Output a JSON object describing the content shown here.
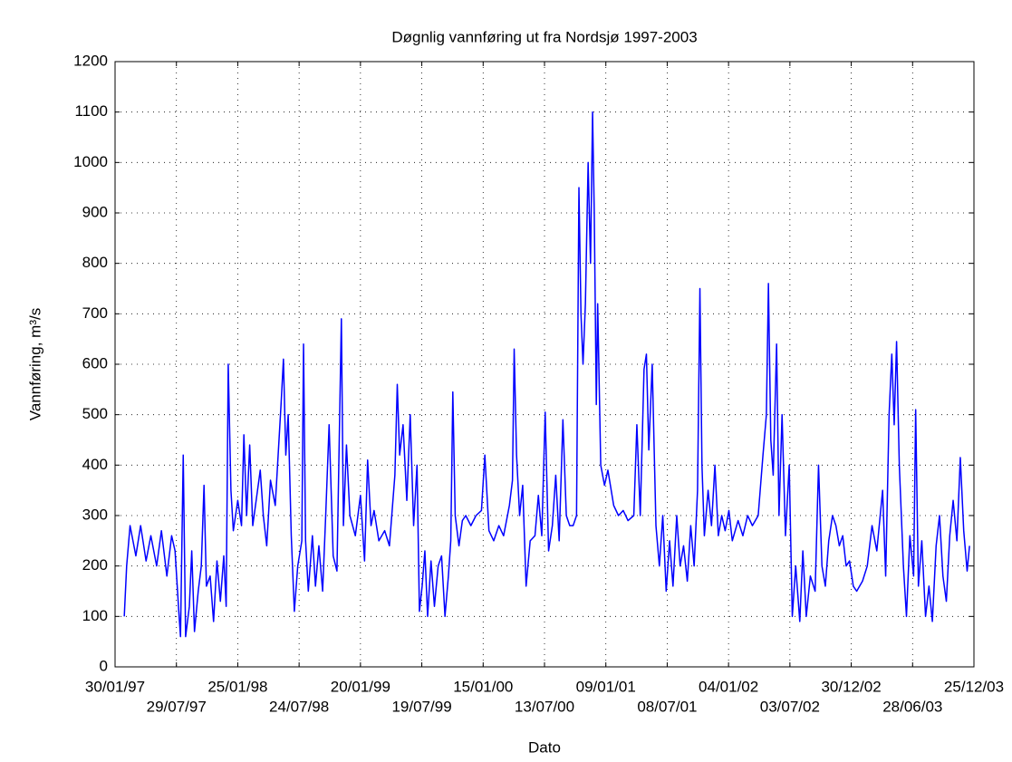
{
  "chart_data": {
    "type": "line",
    "title": "Døgnlig vannføring ut fra Nordsjø 1997-2003",
    "xlabel": "Dato",
    "ylabel": "Vannføring, m³/s",
    "color": "#0000ff",
    "grid": true,
    "ylim": [
      0,
      1200
    ],
    "yticks": [
      0,
      100,
      200,
      300,
      400,
      500,
      600,
      700,
      800,
      900,
      1000,
      1100,
      1200
    ],
    "xlim": [
      "30/01/97",
      "25/12/03"
    ],
    "xticks": [
      "30/01/97",
      "29/07/97",
      "25/01/98",
      "24/07/98",
      "20/01/99",
      "19/07/99",
      "15/01/00",
      "13/07/00",
      "09/01/01",
      "08/07/01",
      "04/01/02",
      "03/07/02",
      "30/12/02",
      "28/06/03",
      "25/12/03"
    ],
    "x": [
      "26/02/97",
      "05/03/97",
      "15/03/97",
      "01/04/97",
      "15/04/97",
      "01/05/97",
      "15/05/97",
      "01/06/97",
      "15/06/97",
      "01/07/97",
      "15/07/97",
      "25/07/97",
      "05/08/97",
      "10/08/97",
      "18/08/97",
      "25/08/97",
      "05/09/97",
      "12/09/97",
      "20/09/97",
      "01/10/97",
      "10/10/97",
      "18/10/97",
      "25/10/97",
      "05/11/97",
      "15/11/97",
      "25/11/97",
      "05/12/97",
      "15/12/97",
      "22/12/97",
      "28/12/97",
      "05/01/98",
      "12/01/98",
      "25/01/98",
      "05/02/98",
      "12/02/98",
      "20/02/98",
      "01/03/98",
      "10/03/98",
      "20/03/98",
      "01/04/98",
      "10/04/98",
      "20/04/98",
      "01/05/98",
      "15/05/98",
      "01/06/98",
      "08/06/98",
      "15/06/98",
      "22/06/98",
      "01/07/98",
      "10/07/98",
      "20/07/98",
      "01/08/98",
      "06/08/98",
      "12/08/98",
      "20/08/98",
      "01/09/98",
      "10/09/98",
      "20/09/98",
      "01/10/98",
      "10/10/98",
      "20/10/98",
      "01/11/98",
      "12/11/98",
      "25/11/98",
      "01/12/98",
      "10/12/98",
      "20/12/98",
      "05/01/99",
      "20/01/99",
      "01/02/99",
      "10/02/99",
      "20/02/99",
      "01/03/99",
      "15/03/99",
      "01/04/99",
      "15/04/99",
      "01/05/99",
      "08/05/99",
      "15/05/99",
      "25/05/99",
      "05/06/99",
      "15/06/99",
      "25/06/99",
      "05/07/99",
      "12/07/99",
      "20/07/99",
      "28/07/99",
      "05/08/99",
      "15/08/99",
      "25/08/99",
      "05/09/99",
      "15/09/99",
      "25/09/99",
      "05/10/99",
      "12/10/99",
      "18/10/99",
      "25/10/99",
      "05/11/99",
      "15/11/99",
      "25/11/99",
      "10/12/99",
      "25/12/99",
      "10/01/00",
      "20/01/00",
      "01/02/00",
      "15/02/00",
      "01/03/00",
      "15/03/00",
      "01/04/00",
      "10/04/00",
      "15/04/00",
      "22/04/00",
      "01/05/00",
      "10/05/00",
      "20/05/00",
      "01/06/00",
      "15/06/00",
      "25/06/00",
      "05/07/00",
      "15/07/00",
      "25/07/00",
      "05/08/00",
      "15/08/00",
      "25/08/00",
      "05/09/00",
      "15/09/00",
      "25/09/00",
      "05/10/00",
      "15/10/00",
      "22/10/00",
      "28/10/00",
      "03/11/00",
      "10/11/00",
      "18/11/00",
      "25/11/00",
      "01/12/00",
      "06/12/00",
      "12/12/00",
      "16/12/00",
      "25/12/00",
      "05/01/01",
      "15/01/01",
      "01/02/01",
      "15/02/01",
      "01/03/01",
      "15/03/01",
      "01/04/01",
      "10/04/01",
      "20/04/01",
      "01/05/01",
      "08/05/01",
      "15/05/01",
      "25/05/01",
      "05/06/01",
      "15/06/01",
      "25/06/01",
      "05/07/01",
      "15/07/01",
      "25/07/01",
      "05/08/01",
      "15/08/01",
      "25/08/01",
      "05/09/01",
      "15/09/01",
      "25/09/01",
      "05/10/01",
      "12/10/01",
      "18/10/01",
      "25/10/01",
      "05/11/01",
      "15/11/01",
      "25/11/01",
      "05/12/01",
      "15/12/01",
      "25/12/01",
      "05/01/02",
      "15/01/02",
      "01/02/02",
      "15/02/02",
      "01/03/02",
      "15/03/02",
      "01/04/02",
      "15/04/02",
      "25/04/02",
      "01/05/02",
      "08/05/02",
      "15/05/02",
      "25/05/02",
      "01/06/02",
      "10/06/02",
      "20/06/02",
      "01/07/02",
      "10/07/02",
      "20/07/02",
      "01/08/02",
      "10/08/02",
      "20/08/02",
      "01/09/02",
      "15/09/02",
      "25/09/02",
      "05/10/02",
      "15/10/02",
      "25/10/02",
      "05/11/02",
      "15/11/02",
      "25/11/02",
      "05/12/02",
      "15/12/02",
      "25/12/02",
      "05/01/03",
      "15/01/03",
      "01/02/03",
      "15/02/03",
      "01/03/03",
      "15/03/03",
      "01/04/03",
      "10/04/03",
      "20/04/03",
      "28/04/03",
      "05/05/03",
      "12/05/03",
      "20/05/03",
      "01/06/03",
      "10/06/03",
      "20/06/03",
      "01/07/03",
      "07/07/03",
      "15/07/03",
      "25/07/03",
      "05/08/03",
      "15/08/03",
      "25/08/03",
      "05/09/03",
      "15/09/03",
      "25/09/03",
      "05/10/03",
      "15/10/03",
      "25/10/03",
      "05/11/03",
      "15/11/03",
      "25/11/03",
      "05/12/03",
      "12/12/03"
    ],
    "values": [
      100,
      200,
      280,
      220,
      280,
      210,
      260,
      200,
      270,
      180,
      260,
      230,
      110,
      60,
      420,
      60,
      120,
      230,
      70,
      150,
      200,
      360,
      160,
      180,
      90,
      210,
      130,
      220,
      120,
      600,
      350,
      270,
      330,
      280,
      460,
      300,
      440,
      280,
      330,
      390,
      300,
      240,
      370,
      320,
      520,
      610,
      420,
      500,
      260,
      110,
      200,
      250,
      640,
      250,
      150,
      260,
      160,
      240,
      150,
      300,
      480,
      220,
      190,
      690,
      280,
      440,
      300,
      260,
      340,
      210,
      410,
      280,
      310,
      250,
      270,
      240,
      380,
      560,
      420,
      480,
      330,
      500,
      280,
      400,
      110,
      160,
      230,
      100,
      210,
      120,
      200,
      220,
      100,
      180,
      250,
      545,
      300,
      240,
      290,
      300,
      280,
      300,
      310,
      420,
      270,
      250,
      280,
      260,
      320,
      370,
      630,
      420,
      300,
      360,
      160,
      250,
      260,
      340,
      260,
      505,
      230,
      280,
      380,
      250,
      490,
      300,
      280,
      280,
      300,
      950,
      700,
      600,
      720,
      1000,
      800,
      1100,
      900,
      520,
      720,
      400,
      360,
      390,
      320,
      300,
      310,
      290,
      300,
      480,
      300,
      590,
      620,
      430,
      600,
      280,
      200,
      300,
      150,
      250,
      160,
      300,
      200,
      240,
      170,
      280,
      200,
      350,
      750,
      400,
      260,
      350,
      280,
      400,
      260,
      300,
      270,
      310,
      250,
      290,
      260,
      300,
      280,
      300,
      420,
      500,
      760,
      450,
      380,
      640,
      300,
      500,
      260,
      400,
      100,
      200,
      90,
      230,
      100,
      180,
      150,
      400,
      200,
      160,
      250,
      300,
      280,
      240,
      260,
      200,
      210,
      160,
      150,
      170,
      200,
      280,
      230,
      350,
      180,
      500,
      620,
      480,
      645,
      400,
      200,
      100,
      260,
      180,
      510,
      160,
      250,
      100,
      160,
      90,
      240,
      300,
      180,
      130,
      260,
      330,
      250,
      415,
      270,
      190,
      240
    ]
  }
}
